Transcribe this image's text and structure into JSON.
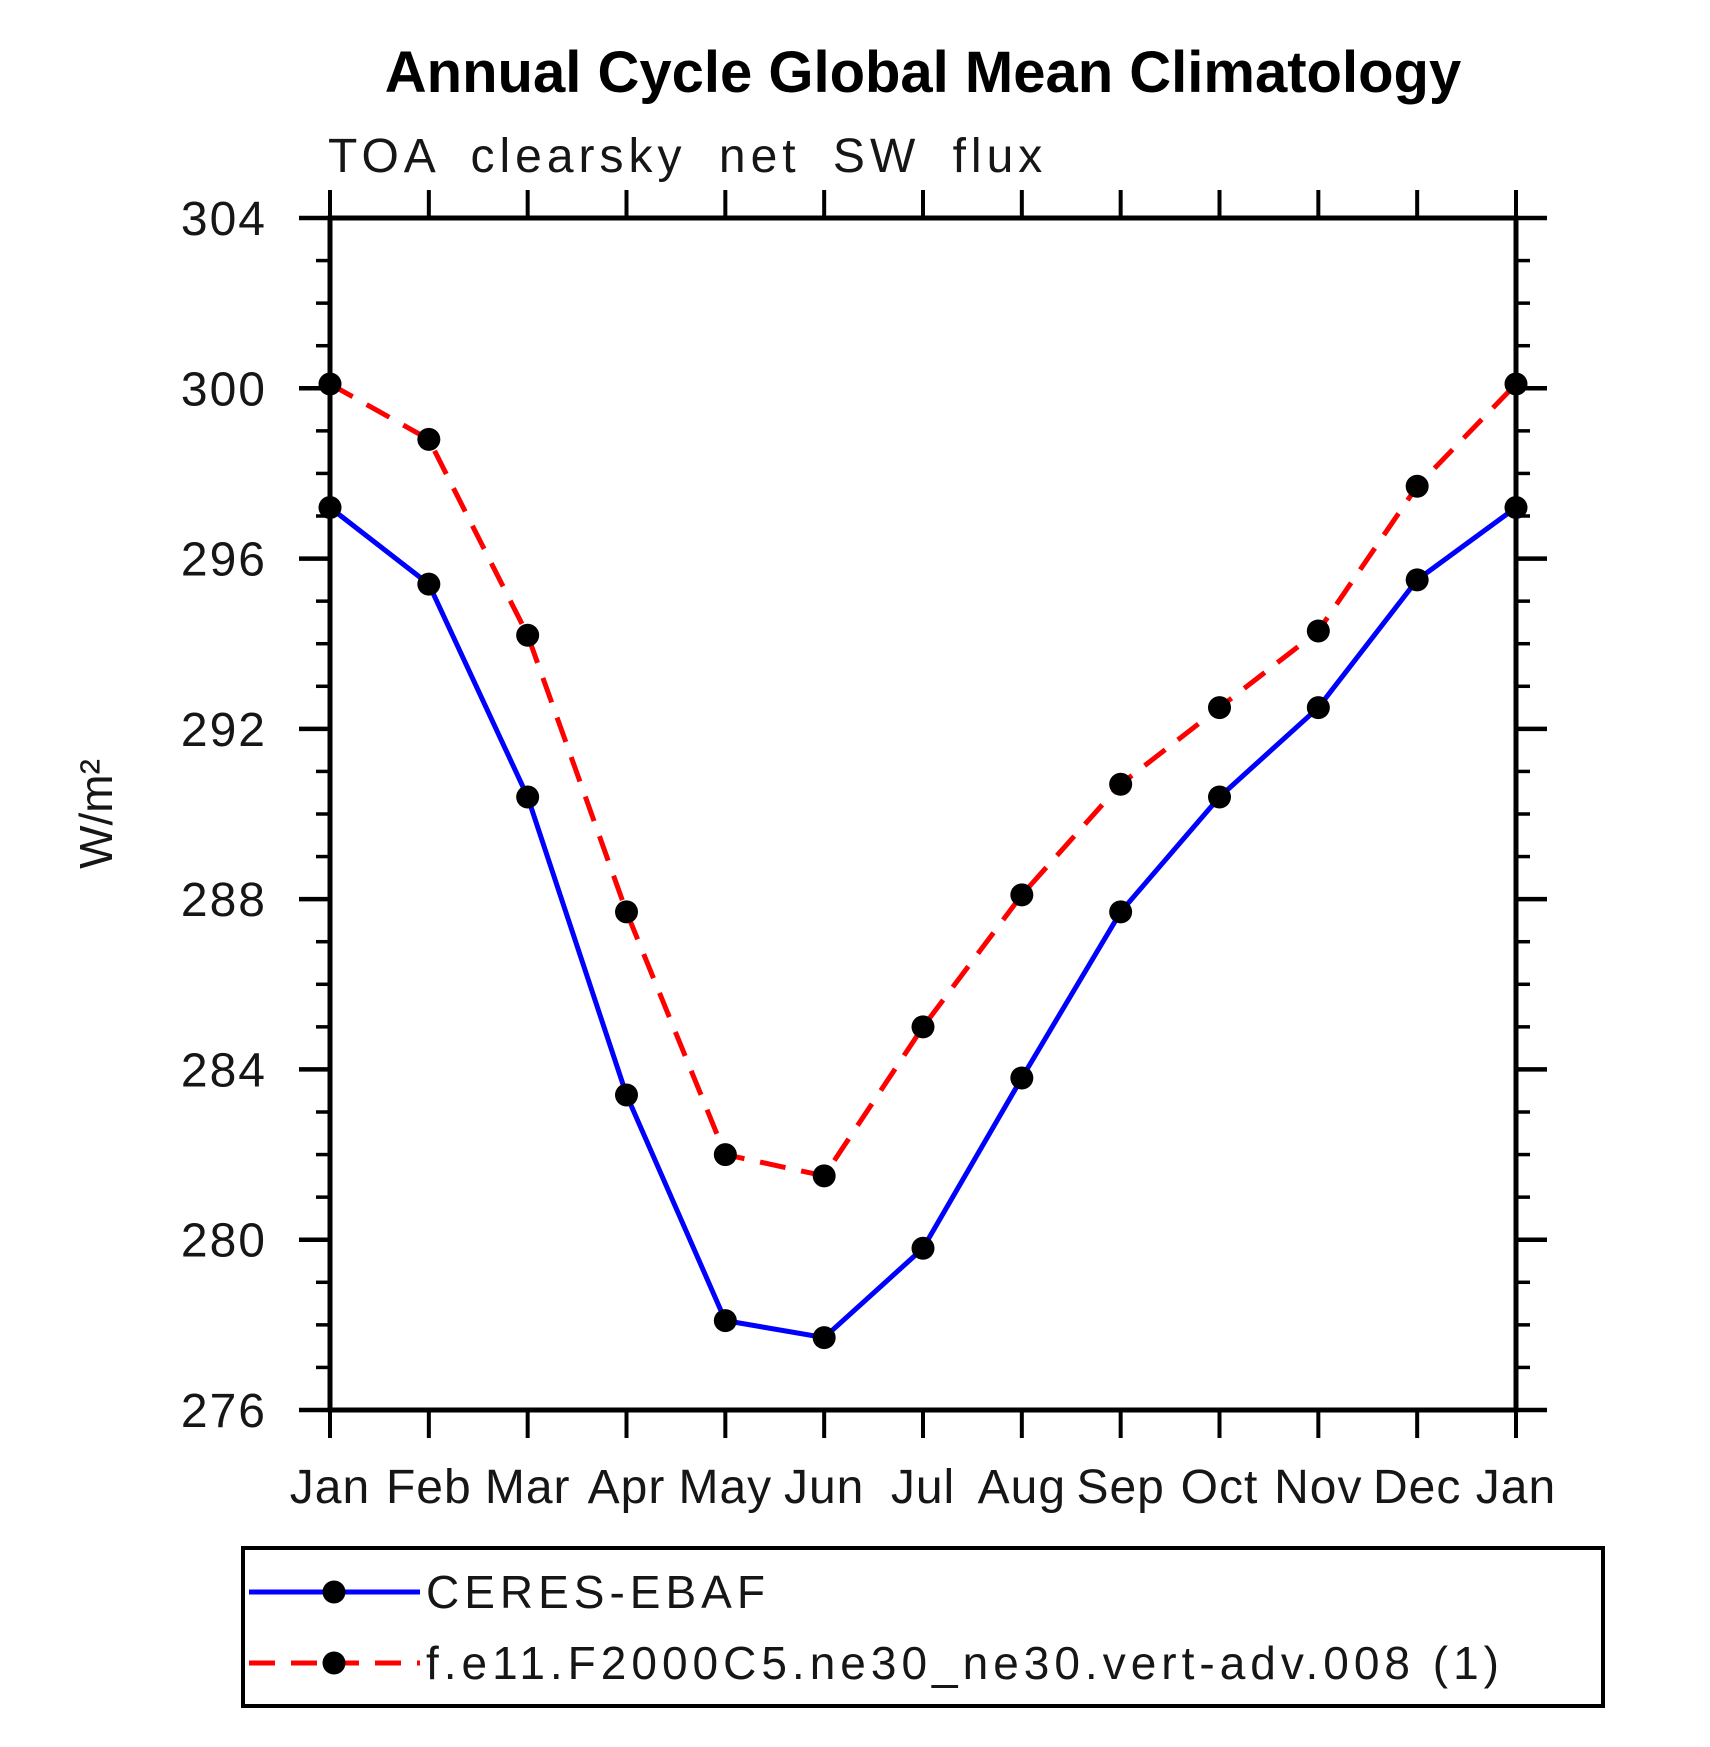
{
  "chart_data": {
    "type": "line",
    "title": "Annual Cycle Global Mean Climatology",
    "subtitle": "TOA clearsky net SW flux",
    "categories": [
      "Jan",
      "Feb",
      "Mar",
      "Apr",
      "May",
      "Jun",
      "Jul",
      "Aug",
      "Sep",
      "Oct",
      "Nov",
      "Dec",
      "Jan"
    ],
    "series": [
      {
        "name": "CERES-EBAF",
        "line_color": "#0000ff",
        "line_style": "solid",
        "marker": "filled-black-circle",
        "values": [
          297.2,
          295.4,
          290.4,
          283.4,
          278.1,
          277.7,
          279.8,
          283.8,
          287.7,
          290.4,
          292.5,
          295.5,
          297.2
        ]
      },
      {
        "name": "f.e11.F2000C5.ne30_ne30.vert-adv.008 (1)",
        "line_color": "#ff0000",
        "line_style": "dashed",
        "marker": "filled-black-circle",
        "values": [
          300.1,
          298.8,
          294.2,
          287.7,
          282.0,
          281.5,
          285.0,
          288.1,
          290.7,
          292.5,
          294.3,
          297.7,
          300.1
        ]
      }
    ],
    "xlabel": "",
    "ylabel": "W/m²",
    "ylim": [
      276,
      304
    ],
    "ytick_major": [
      276,
      280,
      284,
      288,
      292,
      296,
      300,
      304
    ],
    "ytick_minor_step": 1,
    "grid": false,
    "legend_position": "bottom-box",
    "marker_color": "#000000",
    "axis_color": "#000000"
  }
}
